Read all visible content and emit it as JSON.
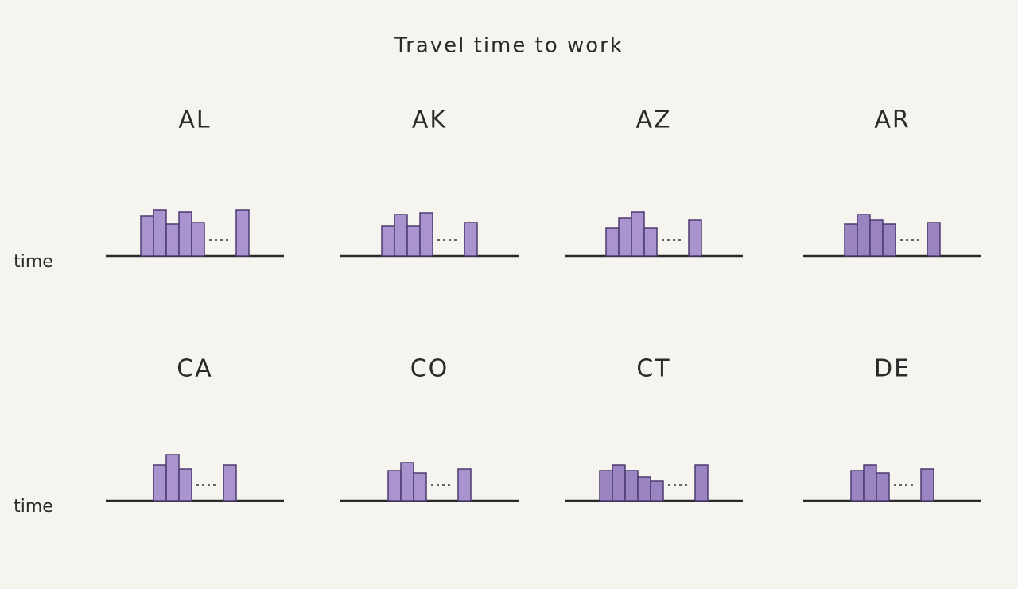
{
  "title": "Travel time to work",
  "chart_data": [
    {
      "type": "bar",
      "title": "AL",
      "ylabel": "time",
      "values": [
        50,
        58,
        40,
        55,
        42,
        58
      ],
      "color": "#a994cf"
    },
    {
      "type": "bar",
      "title": "AK",
      "values": [
        38,
        52,
        38,
        54,
        42
      ],
      "color": "#a994cf"
    },
    {
      "type": "bar",
      "title": "AZ",
      "values": [
        35,
        48,
        55,
        35,
        45
      ],
      "color": "#a994cf"
    },
    {
      "type": "bar",
      "title": "AR",
      "values": [
        40,
        52,
        45,
        40,
        42
      ],
      "color": "#9a84c2"
    },
    {
      "type": "bar",
      "title": "CA",
      "ylabel": "time",
      "values": [
        45,
        58,
        40,
        45
      ],
      "color": "#a994cf"
    },
    {
      "type": "bar",
      "title": "CO",
      "values": [
        38,
        48,
        35,
        40
      ],
      "color": "#a994cf"
    },
    {
      "type": "bar",
      "title": "CT",
      "values": [
        38,
        45,
        38,
        30,
        25,
        45
      ],
      "color": "#9a84c2"
    },
    {
      "type": "bar",
      "title": "DE",
      "values": [
        38,
        45,
        35,
        40
      ],
      "color": "#9a84c2"
    }
  ]
}
